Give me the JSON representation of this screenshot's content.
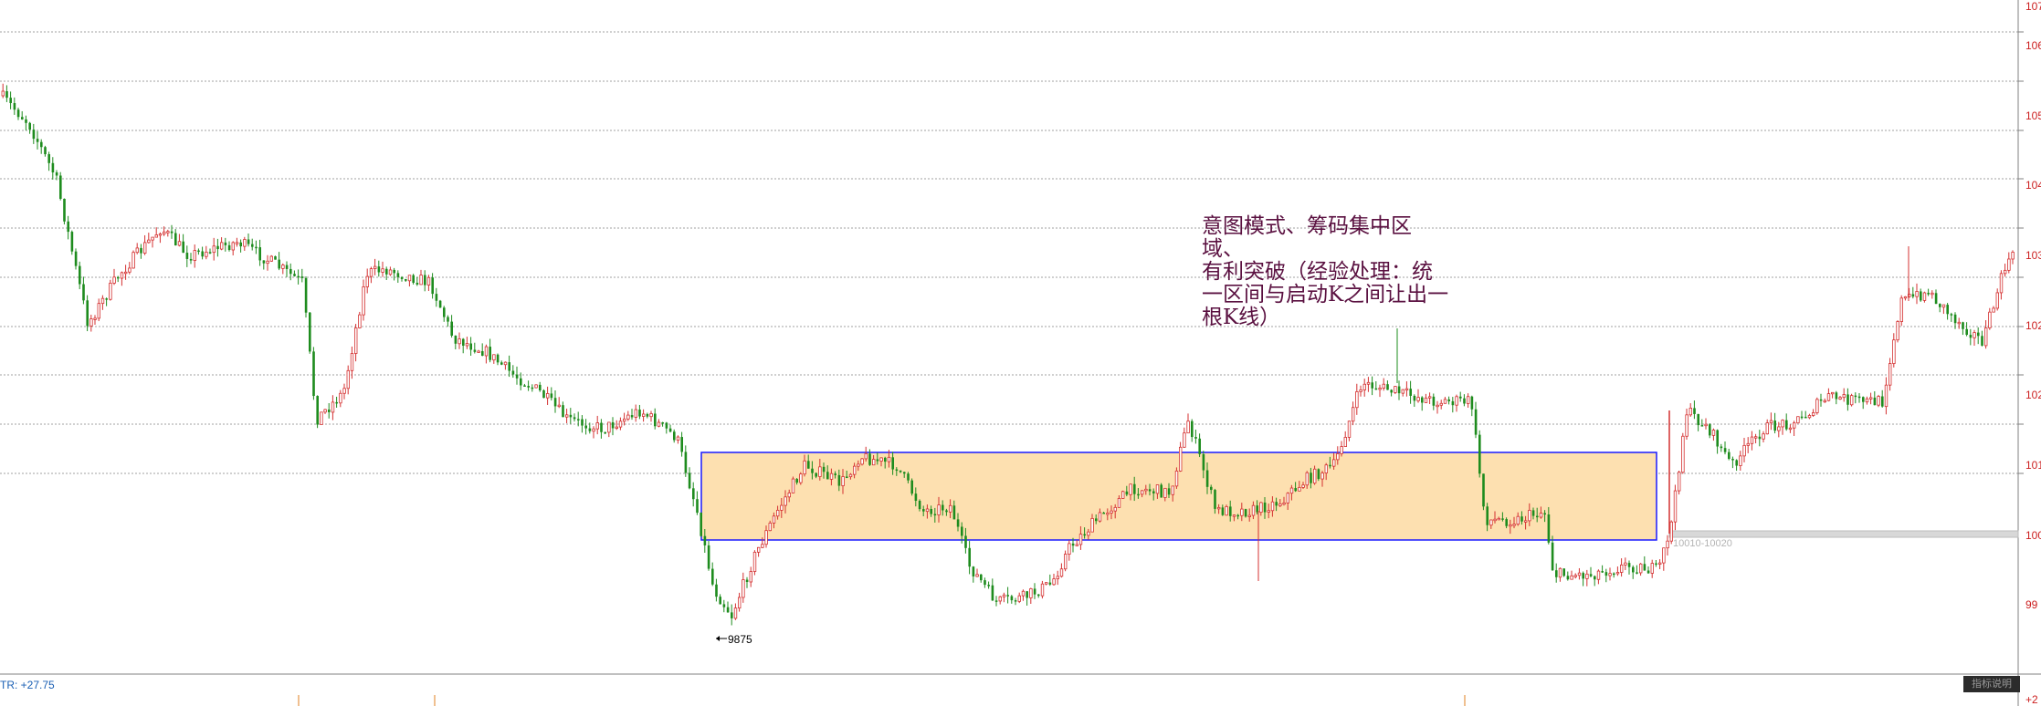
{
  "annotation": {
    "text": "意图模式、筹码集中区\n域、\n有利突破（经验处理：统\n一区间与启动K之间让出一\n根K线）"
  },
  "low_label": "9875",
  "zone_label": "10010-10020",
  "indicator": {
    "label": "TR: +27.75",
    "button_label": "指标说明"
  },
  "y_axis": {
    "tick_labels": [
      "107",
      "106",
      "105",
      "104",
      "103",
      "102",
      "102",
      "101",
      "100",
      "99"
    ],
    "sub_label": "+2"
  },
  "colors": {
    "up": "#d43030",
    "down": "#1e8c1e",
    "zone_fill": "#fde0b0",
    "zone_border": "#1a1aff",
    "grid": "#a0a0a0",
    "annotation": "#5a1040"
  },
  "chart_data": {
    "type": "candlestick",
    "price_label_min": 9875,
    "consolidation_zone": "10010-10020",
    "grid": true
  }
}
